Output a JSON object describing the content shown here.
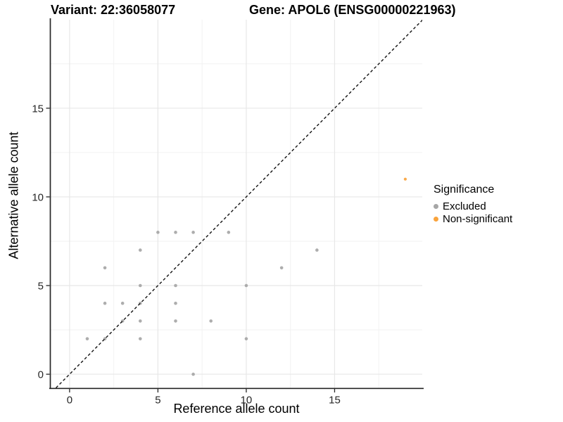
{
  "chart_data": {
    "type": "scatter",
    "title_left": "Variant: 22:36058077",
    "title_right": "Gene: APOL6 (ENSG00000221963)",
    "xlabel": "Reference allele count",
    "ylabel": "Alternative allele count",
    "xlim": [
      -1.07,
      19.96
    ],
    "ylim": [
      -0.77,
      19.99
    ],
    "x_ticks": [
      0,
      5,
      10,
      15
    ],
    "y_ticks": [
      0,
      5,
      10,
      15
    ],
    "x_minor_gridlines": [
      2.5,
      7.5,
      12.5,
      17.5
    ],
    "y_minor_gridlines": [
      2.5,
      7.5,
      12.5,
      17.5
    ],
    "grid": true,
    "identity_line": {
      "style": "dashed",
      "equation": "y = x",
      "color": "#111111"
    },
    "legend": {
      "title": "Significance",
      "position": "right"
    },
    "colors": {
      "excluded": "#a6a6a6",
      "non_significant": "#f9a33c"
    },
    "series": [
      {
        "name": "Excluded",
        "color": "#a6a6a6",
        "point_radius": 2.3,
        "points": [
          [
            1,
            2
          ],
          [
            2,
            2
          ],
          [
            2,
            4
          ],
          [
            2,
            6
          ],
          [
            3,
            3
          ],
          [
            3,
            4
          ],
          [
            4,
            2
          ],
          [
            4,
            3
          ],
          [
            4,
            4
          ],
          [
            4,
            5
          ],
          [
            4,
            7
          ],
          [
            5,
            8
          ],
          [
            6,
            3
          ],
          [
            6,
            4
          ],
          [
            6,
            5
          ],
          [
            6,
            8
          ],
          [
            7,
            0
          ],
          [
            7,
            8
          ],
          [
            8,
            3
          ],
          [
            9,
            8
          ],
          [
            10,
            2
          ],
          [
            10,
            5
          ],
          [
            12,
            6
          ],
          [
            14,
            7
          ]
        ]
      },
      {
        "name": "Non-significant",
        "color": "#f9a33c",
        "point_radius": 2.1,
        "points": [
          [
            19,
            11
          ]
        ]
      }
    ]
  }
}
